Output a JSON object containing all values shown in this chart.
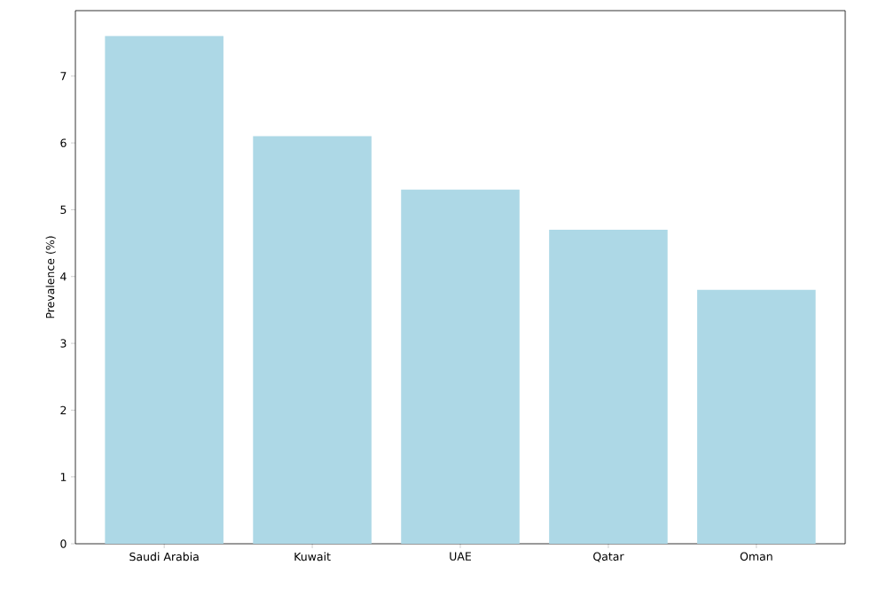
{
  "chart_data": {
    "type": "bar",
    "ylabel": "Prevalence (%)",
    "categories": [
      "Saudi Arabia",
      "Kuwait",
      "UAE",
      "Qatar",
      "Oman"
    ],
    "values": [
      7.6,
      6.1,
      5.3,
      4.7,
      3.8
    ],
    "color": "#add8e6",
    "ylim": [
      0,
      7.98
    ],
    "yticks": [
      0,
      1,
      2,
      3,
      4,
      5,
      6,
      7
    ],
    "grid": false
  }
}
